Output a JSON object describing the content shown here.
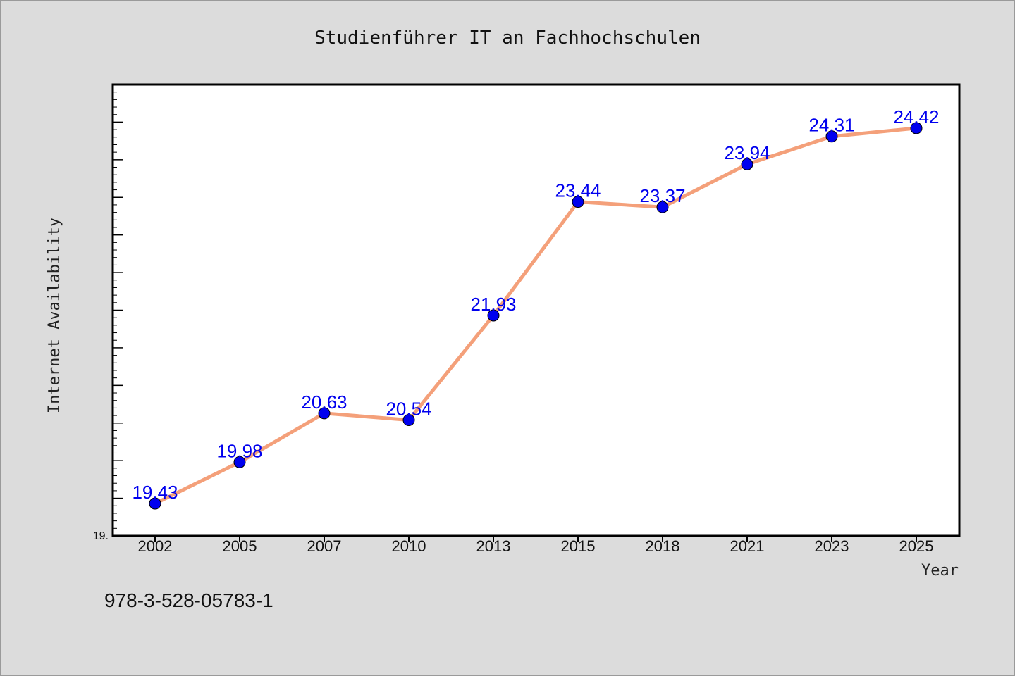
{
  "chart_data": {
    "type": "line",
    "title": "Studienführer IT an Fachhochschulen",
    "xlabel": "Year",
    "ylabel": "Internet Availability",
    "categories": [
      "2002",
      "2005",
      "2007",
      "2010",
      "2013",
      "2015",
      "2018",
      "2021",
      "2023",
      "2025"
    ],
    "series": [
      {
        "values": [
          19.43,
          19.98,
          20.63,
          20.54,
          21.93,
          23.44,
          23.37,
          23.94,
          24.31,
          24.42
        ],
        "labels": [
          "19.43",
          "19.98",
          "20.63",
          "20.54",
          "21.93",
          "23.44",
          "23.37",
          "23.94",
          "24.31",
          "24.42"
        ],
        "line_color": "#f4a07a",
        "marker_color": "#0000ee"
      }
    ],
    "ylim": [
      19.0,
      25.0
    ],
    "y_tick_label_shown": "19.",
    "grid": false,
    "legend": "none"
  },
  "footer": {
    "code": "978-3-528-05783-1"
  },
  "colors": {
    "background": "#dcdcdc",
    "plot_background": "#ffffff",
    "line": "#f4a07a",
    "markers": "#0000ee",
    "data_labels": "#0000ee"
  }
}
